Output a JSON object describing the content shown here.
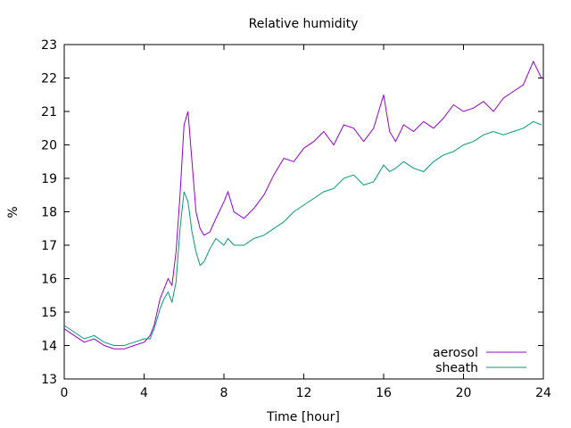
{
  "chart_data": {
    "type": "line",
    "title": "Relative humidity",
    "xlabel": "Time [hour]",
    "ylabel": "%",
    "xlim": [
      0,
      24
    ],
    "ylim": [
      13,
      23
    ],
    "x_ticks": [
      0,
      4,
      8,
      12,
      16,
      20,
      24
    ],
    "y_ticks": [
      13,
      14,
      15,
      16,
      17,
      18,
      19,
      20,
      21,
      22,
      23
    ],
    "legend_position": "bottom-right",
    "series": [
      {
        "name": "aerosol",
        "color": "#9400d3",
        "x": [
          0,
          0.5,
          1,
          1.5,
          2,
          2.5,
          3,
          3.5,
          4,
          4.3,
          4.5,
          4.8,
          5,
          5.2,
          5.4,
          5.6,
          5.8,
          6,
          6.2,
          6.4,
          6.6,
          6.8,
          7,
          7.3,
          7.6,
          8,
          8.2,
          8.5,
          9,
          9.5,
          10,
          10.5,
          11,
          11.5,
          12,
          12.5,
          13,
          13.5,
          14,
          14.5,
          15,
          15.5,
          16,
          16.3,
          16.6,
          17,
          17.5,
          18,
          18.5,
          19,
          19.5,
          20,
          20.5,
          21,
          21.5,
          22,
          22.5,
          23,
          23.5,
          23.9
        ],
        "values": [
          14.5,
          14.3,
          14.1,
          14.2,
          14.0,
          13.9,
          13.9,
          14.0,
          14.1,
          14.3,
          14.6,
          15.4,
          15.7,
          16.0,
          15.8,
          16.8,
          18.5,
          20.6,
          21.0,
          19.5,
          18.0,
          17.5,
          17.3,
          17.4,
          17.8,
          18.3,
          18.6,
          18.0,
          17.8,
          18.1,
          18.5,
          19.1,
          19.6,
          19.5,
          19.9,
          20.1,
          20.4,
          20.0,
          20.6,
          20.5,
          20.1,
          20.5,
          21.5,
          20.4,
          20.1,
          20.6,
          20.4,
          20.7,
          20.5,
          20.8,
          21.2,
          21.0,
          21.1,
          21.3,
          21.0,
          21.4,
          21.6,
          21.8,
          22.5,
          22.0
        ]
      },
      {
        "name": "sheath",
        "color": "#009e73",
        "x": [
          0,
          0.5,
          1,
          1.5,
          2,
          2.5,
          3,
          3.5,
          4,
          4.3,
          4.5,
          4.8,
          5,
          5.2,
          5.4,
          5.6,
          5.8,
          6,
          6.2,
          6.4,
          6.6,
          6.8,
          7,
          7.3,
          7.6,
          8,
          8.2,
          8.5,
          9,
          9.5,
          10,
          10.5,
          11,
          11.5,
          12,
          12.5,
          13,
          13.5,
          14,
          14.5,
          15,
          15.5,
          16,
          16.3,
          16.6,
          17,
          17.5,
          18,
          18.5,
          19,
          19.5,
          20,
          20.5,
          21,
          21.5,
          22,
          22.5,
          23,
          23.5,
          23.9
        ],
        "values": [
          14.6,
          14.4,
          14.2,
          14.3,
          14.1,
          14.0,
          14.0,
          14.1,
          14.2,
          14.2,
          14.5,
          15.1,
          15.4,
          15.6,
          15.3,
          15.9,
          17.5,
          18.6,
          18.3,
          17.4,
          16.8,
          16.4,
          16.5,
          16.9,
          17.2,
          17.0,
          17.2,
          17.0,
          17.0,
          17.2,
          17.3,
          17.5,
          17.7,
          18.0,
          18.2,
          18.4,
          18.6,
          18.7,
          19.0,
          19.1,
          18.8,
          18.9,
          19.4,
          19.2,
          19.3,
          19.5,
          19.3,
          19.2,
          19.5,
          19.7,
          19.8,
          20.0,
          20.1,
          20.3,
          20.4,
          20.3,
          20.4,
          20.5,
          20.7,
          20.6
        ]
      }
    ]
  }
}
